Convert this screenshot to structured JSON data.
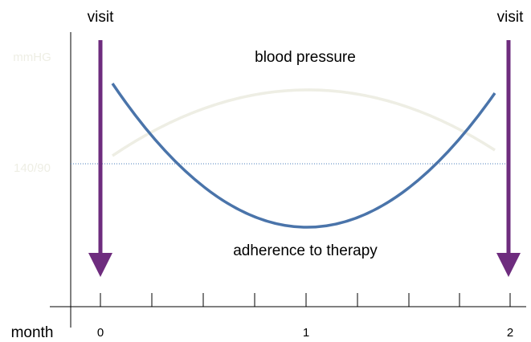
{
  "labels": {
    "visit_left": "visit",
    "visit_right": "visit",
    "unit": "mmHG",
    "threshold": "140/90",
    "bp": "blood pressure",
    "adherence": "adherence to therapy",
    "x_axis": "month",
    "tick_0": "0",
    "tick_1": "1",
    "tick_2": "2"
  }
}
